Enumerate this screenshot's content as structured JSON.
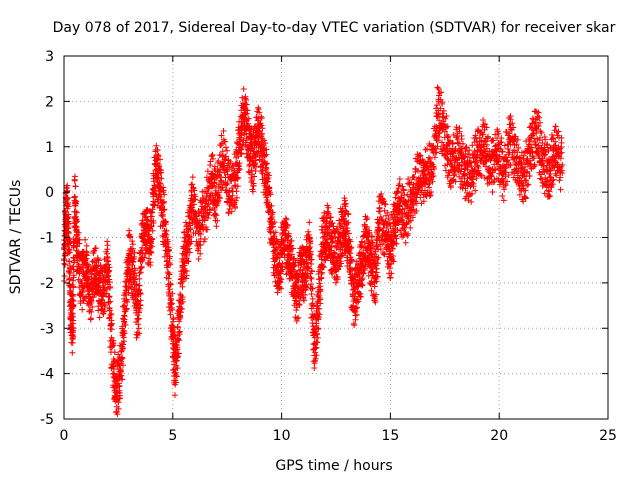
{
  "chart_data": {
    "type": "scatter",
    "title": "Day 078 of 2017, Sidereal Day-to-day VTEC variation (SDTVAR) for receiver skar",
    "xlabel": "GPS time / hours",
    "ylabel": "SDTVAR / TECUs",
    "xlim": [
      0,
      25
    ],
    "ylim": [
      -5,
      3
    ],
    "xticks": [
      0,
      5,
      10,
      15,
      20,
      25
    ],
    "yticks": [
      -5,
      -4,
      -3,
      -2,
      -1,
      0,
      1,
      2,
      3
    ],
    "grid": true,
    "marker": "plus",
    "color": "#ff0000",
    "series": [
      {
        "name": "SDTVAR",
        "trace": [
          [
            0.0,
            -1.5
          ],
          [
            0.1,
            -0.3
          ],
          [
            0.2,
            -0.8
          ],
          [
            0.3,
            -2.6
          ],
          [
            0.4,
            -3.0
          ],
          [
            0.5,
            -0.1
          ],
          [
            0.6,
            -1.2
          ],
          [
            0.8,
            -2.0
          ],
          [
            1.0,
            -1.6
          ],
          [
            1.2,
            -2.3
          ],
          [
            1.4,
            -1.7
          ],
          [
            1.6,
            -2.1
          ],
          [
            1.8,
            -2.3
          ],
          [
            2.0,
            -1.5
          ],
          [
            2.2,
            -3.4
          ],
          [
            2.4,
            -4.5
          ],
          [
            2.6,
            -3.9
          ],
          [
            2.8,
            -2.5
          ],
          [
            3.0,
            -1.4
          ],
          [
            3.2,
            -1.8
          ],
          [
            3.4,
            -2.8
          ],
          [
            3.6,
            -1.0
          ],
          [
            3.8,
            -0.9
          ],
          [
            4.0,
            -1.1
          ],
          [
            4.2,
            0.6
          ],
          [
            4.4,
            0.1
          ],
          [
            4.6,
            -0.7
          ],
          [
            4.8,
            -1.6
          ],
          [
            5.0,
            -3.2
          ],
          [
            5.1,
            -3.9
          ],
          [
            5.3,
            -2.8
          ],
          [
            5.5,
            -1.5
          ],
          [
            5.7,
            -1.1
          ],
          [
            5.9,
            -0.2
          ],
          [
            6.2,
            -0.9
          ],
          [
            6.5,
            -0.4
          ],
          [
            6.8,
            0.3
          ],
          [
            7.0,
            -0.2
          ],
          [
            7.3,
            0.8
          ],
          [
            7.6,
            0.0
          ],
          [
            7.9,
            0.3
          ],
          [
            8.1,
            1.2
          ],
          [
            8.3,
            1.8
          ],
          [
            8.5,
            1.0
          ],
          [
            8.7,
            0.6
          ],
          [
            8.9,
            1.4
          ],
          [
            9.1,
            1.0
          ],
          [
            9.3,
            0.3
          ],
          [
            9.5,
            -0.6
          ],
          [
            9.7,
            -1.4
          ],
          [
            9.9,
            -1.8
          ],
          [
            10.1,
            -0.9
          ],
          [
            10.3,
            -1.3
          ],
          [
            10.5,
            -1.7
          ],
          [
            10.7,
            -2.3
          ],
          [
            10.9,
            -1.6
          ],
          [
            11.1,
            -1.9
          ],
          [
            11.3,
            -1.1
          ],
          [
            11.5,
            -3.6
          ],
          [
            11.7,
            -2.4
          ],
          [
            11.9,
            -1.1
          ],
          [
            12.1,
            -0.9
          ],
          [
            12.3,
            -1.2
          ],
          [
            12.5,
            -1.5
          ],
          [
            12.7,
            -1.0
          ],
          [
            12.9,
            -0.7
          ],
          [
            13.1,
            -1.2
          ],
          [
            13.3,
            -2.4
          ],
          [
            13.5,
            -2.0
          ],
          [
            13.7,
            -1.6
          ],
          [
            13.9,
            -1.0
          ],
          [
            14.1,
            -1.5
          ],
          [
            14.3,
            -1.9
          ],
          [
            14.5,
            -0.6
          ],
          [
            14.8,
            -0.9
          ],
          [
            15.0,
            -1.3
          ],
          [
            15.2,
            -0.7
          ],
          [
            15.4,
            -0.3
          ],
          [
            15.7,
            -0.5
          ],
          [
            16.0,
            -0.1
          ],
          [
            16.3,
            0.3
          ],
          [
            16.6,
            0.4
          ],
          [
            16.9,
            0.5
          ],
          [
            17.2,
            1.8
          ],
          [
            17.5,
            1.2
          ],
          [
            17.8,
            0.6
          ],
          [
            18.1,
            0.9
          ],
          [
            18.4,
            0.5
          ],
          [
            18.7,
            0.3
          ],
          [
            19.0,
            0.8
          ],
          [
            19.3,
            1.0
          ],
          [
            19.6,
            0.5
          ],
          [
            19.9,
            0.9
          ],
          [
            20.2,
            0.4
          ],
          [
            20.5,
            1.2
          ],
          [
            20.8,
            0.6
          ],
          [
            21.1,
            0.2
          ],
          [
            21.4,
            0.9
          ],
          [
            21.7,
            1.3
          ],
          [
            22.0,
            0.7
          ],
          [
            22.3,
            0.4
          ],
          [
            22.6,
            0.9
          ],
          [
            22.9,
            0.6
          ]
        ]
      }
    ]
  }
}
